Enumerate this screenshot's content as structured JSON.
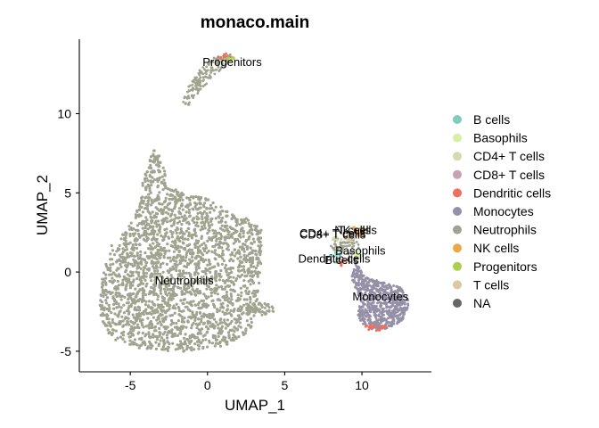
{
  "chart_data": {
    "type": "scatter",
    "title": "monaco.main",
    "xlabel": "UMAP_1",
    "ylabel": "UMAP_2",
    "xlim": [
      -8.3,
      14.5
    ],
    "ylim": [
      -6.3,
      14.7
    ],
    "xticks": [
      -5,
      0,
      5,
      10
    ],
    "yticks": [
      -5,
      0,
      5,
      10
    ],
    "grid": false,
    "legend_position": "right",
    "series": [
      {
        "name": "B cells",
        "color": "#7fcdbb"
      },
      {
        "name": "Basophils",
        "color": "#d9f0a3"
      },
      {
        "name": "CD4+ T cells",
        "color": "#d4d9b0"
      },
      {
        "name": "CD8+ T cells",
        "color": "#c7a2b6"
      },
      {
        "name": "Dendritic cells",
        "color": "#ef6f5f"
      },
      {
        "name": "Monocytes",
        "color": "#9590a8"
      },
      {
        "name": "Neutrophils",
        "color": "#a0a38f"
      },
      {
        "name": "NK cells",
        "color": "#eea649"
      },
      {
        "name": "Progenitors",
        "color": "#a9d04f"
      },
      {
        "name": "T cells",
        "color": "#d9c9a3"
      },
      {
        "name": "NA",
        "color": "#666666"
      }
    ],
    "annotations": [
      {
        "text": "Progenitors",
        "x": 1.6,
        "y": 13.2
      },
      {
        "text": "Neutrophils",
        "x": -1.5,
        "y": -0.6
      },
      {
        "text": "Monocytes",
        "x": 11.2,
        "y": -1.6
      },
      {
        "text": "CD4+ T cells",
        "x": 8.1,
        "y": 2.4
      },
      {
        "text": "CD8+ T cells",
        "x": 8.1,
        "y": 2.3
      },
      {
        "text": "T cells",
        "x": 9.5,
        "y": 2.6
      },
      {
        "text": "NK cells",
        "x": 9.6,
        "y": 2.6
      },
      {
        "text": "Basophils",
        "x": 9.9,
        "y": 1.3
      },
      {
        "text": "Dendritic cells",
        "x": 8.2,
        "y": 0.8
      },
      {
        "text": "B cells",
        "x": 8.7,
        "y": 0.7
      }
    ]
  }
}
